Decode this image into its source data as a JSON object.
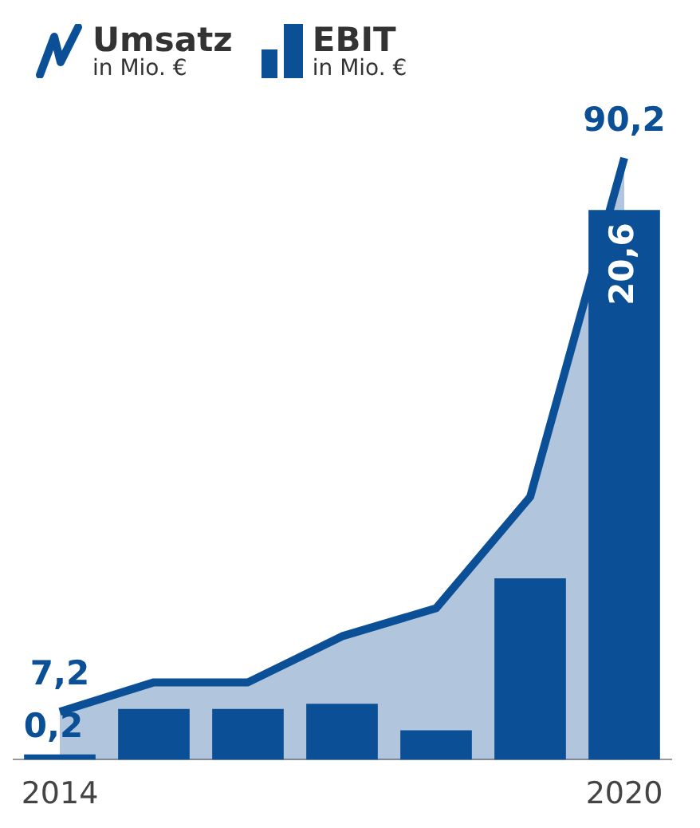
{
  "chart_data": {
    "type": "area",
    "legend": "top left",
    "categories": [
      "2014",
      null,
      null,
      null,
      null,
      null,
      "2020"
    ],
    "annotations": [
      "in Mio. €",
      "in Mio. €"
    ],
    "series": [
      {
        "name": "Umsatz",
        "color": "#0b4f96",
        "values": [
          7.2,
          11.6,
          11.6,
          18.5,
          22.7,
          39.4,
          90.2
        ],
        "value_labels": [
          "7,2",
          null,
          null,
          null,
          null,
          null,
          "90,2"
        ]
      },
      {
        "name": "EBIT",
        "type": "bar",
        "axis": "y2",
        "color": "#0b4f96",
        "values": [
          0.2,
          1.9,
          1.9,
          2.1,
          1.1,
          6.8,
          20.6
        ],
        "value_labels": [
          "0,2",
          null,
          null,
          null,
          null,
          null,
          "20,6"
        ]
      }
    ]
  }
}
